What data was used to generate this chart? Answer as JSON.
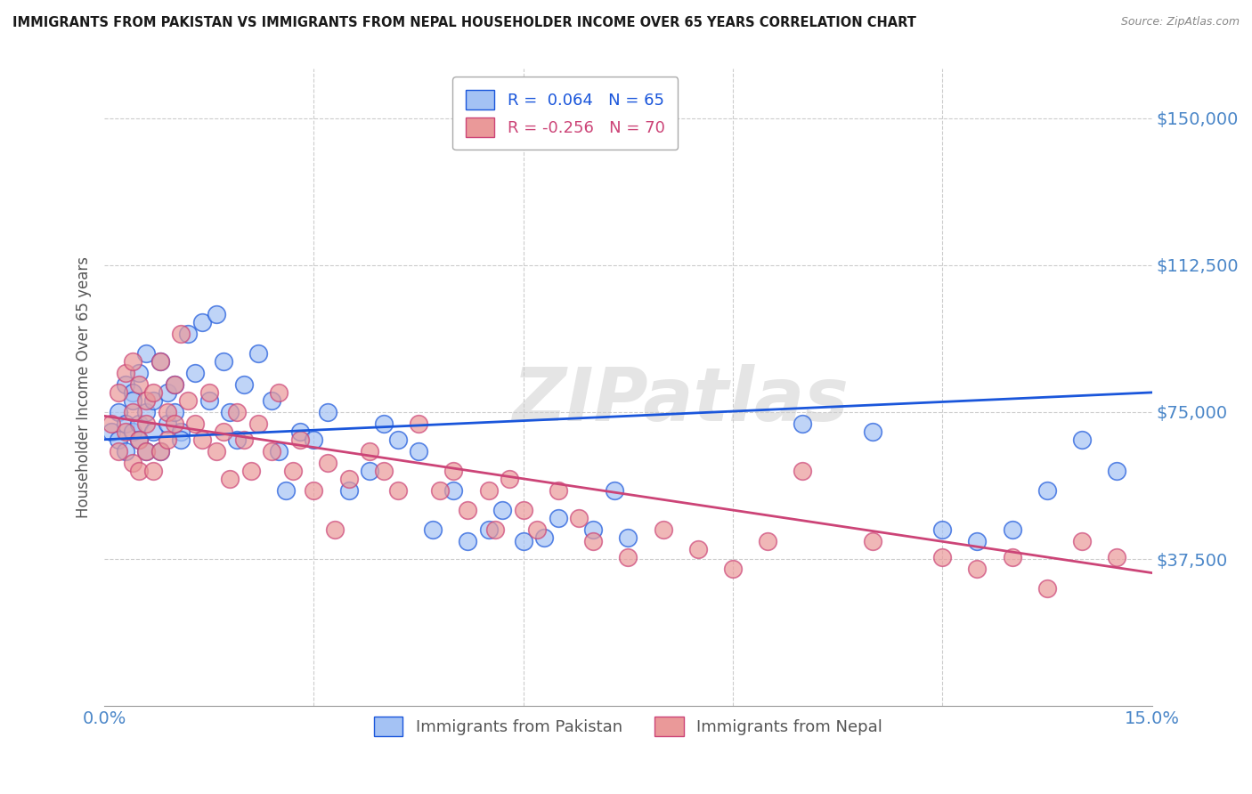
{
  "title": "IMMIGRANTS FROM PAKISTAN VS IMMIGRANTS FROM NEPAL HOUSEHOLDER INCOME OVER 65 YEARS CORRELATION CHART",
  "source": "Source: ZipAtlas.com",
  "ylabel": "Householder Income Over 65 years",
  "xlim": [
    0.0,
    0.15
  ],
  "ylim": [
    0,
    162500
  ],
  "ytick_values": [
    0,
    37500,
    75000,
    112500,
    150000
  ],
  "ytick_labels": [
    "",
    "$37,500",
    "$75,000",
    "$112,500",
    "$150,000"
  ],
  "watermark": "ZIPatlas",
  "pakistan_color": "#a4c2f4",
  "nepal_color": "#ea9999",
  "pakistan_line_color": "#1a56db",
  "nepal_line_color": "#cc4477",
  "legend_pakistan_display": "Immigrants from Pakistan",
  "legend_nepal_display": "Immigrants from Nepal",
  "R_pakistan": 0.064,
  "N_pakistan": 65,
  "R_nepal": -0.256,
  "N_nepal": 70,
  "pakistan_x": [
    0.001,
    0.002,
    0.002,
    0.003,
    0.003,
    0.003,
    0.004,
    0.004,
    0.004,
    0.005,
    0.005,
    0.005,
    0.006,
    0.006,
    0.006,
    0.007,
    0.007,
    0.008,
    0.008,
    0.009,
    0.009,
    0.01,
    0.01,
    0.011,
    0.011,
    0.012,
    0.013,
    0.014,
    0.015,
    0.016,
    0.017,
    0.018,
    0.019,
    0.02,
    0.022,
    0.024,
    0.025,
    0.026,
    0.028,
    0.03,
    0.032,
    0.035,
    0.038,
    0.04,
    0.042,
    0.045,
    0.047,
    0.05,
    0.052,
    0.055,
    0.057,
    0.06,
    0.063,
    0.065,
    0.07,
    0.073,
    0.075,
    0.1,
    0.11,
    0.12,
    0.125,
    0.13,
    0.135,
    0.14,
    0.145
  ],
  "pakistan_y": [
    70000,
    75000,
    68000,
    82000,
    72000,
    65000,
    80000,
    78000,
    70000,
    85000,
    72000,
    68000,
    90000,
    75000,
    65000,
    78000,
    70000,
    88000,
    65000,
    80000,
    72000,
    75000,
    82000,
    70000,
    68000,
    95000,
    85000,
    98000,
    78000,
    100000,
    88000,
    75000,
    68000,
    82000,
    90000,
    78000,
    65000,
    55000,
    70000,
    68000,
    75000,
    55000,
    60000,
    72000,
    68000,
    65000,
    45000,
    55000,
    42000,
    45000,
    50000,
    42000,
    43000,
    48000,
    45000,
    55000,
    43000,
    72000,
    70000,
    45000,
    42000,
    45000,
    55000,
    68000,
    60000
  ],
  "nepal_x": [
    0.001,
    0.002,
    0.002,
    0.003,
    0.003,
    0.004,
    0.004,
    0.004,
    0.005,
    0.005,
    0.005,
    0.006,
    0.006,
    0.006,
    0.007,
    0.007,
    0.008,
    0.008,
    0.009,
    0.009,
    0.01,
    0.01,
    0.011,
    0.012,
    0.013,
    0.014,
    0.015,
    0.016,
    0.017,
    0.018,
    0.019,
    0.02,
    0.021,
    0.022,
    0.024,
    0.025,
    0.027,
    0.028,
    0.03,
    0.032,
    0.033,
    0.035,
    0.038,
    0.04,
    0.042,
    0.045,
    0.048,
    0.05,
    0.052,
    0.055,
    0.056,
    0.058,
    0.06,
    0.062,
    0.065,
    0.068,
    0.07,
    0.075,
    0.08,
    0.085,
    0.09,
    0.095,
    0.1,
    0.11,
    0.12,
    0.125,
    0.13,
    0.135,
    0.14,
    0.145
  ],
  "nepal_y": [
    72000,
    80000,
    65000,
    85000,
    70000,
    88000,
    75000,
    62000,
    82000,
    68000,
    60000,
    78000,
    65000,
    72000,
    80000,
    60000,
    88000,
    65000,
    75000,
    68000,
    82000,
    72000,
    95000,
    78000,
    72000,
    68000,
    80000,
    65000,
    70000,
    58000,
    75000,
    68000,
    60000,
    72000,
    65000,
    80000,
    60000,
    68000,
    55000,
    62000,
    45000,
    58000,
    65000,
    60000,
    55000,
    72000,
    55000,
    60000,
    50000,
    55000,
    45000,
    58000,
    50000,
    45000,
    55000,
    48000,
    42000,
    38000,
    45000,
    40000,
    35000,
    42000,
    60000,
    42000,
    38000,
    35000,
    38000,
    30000,
    42000,
    38000
  ],
  "background_color": "#ffffff",
  "grid_color": "#cccccc",
  "axis_label_color": "#4a86c8",
  "title_color": "#1a1a1a"
}
